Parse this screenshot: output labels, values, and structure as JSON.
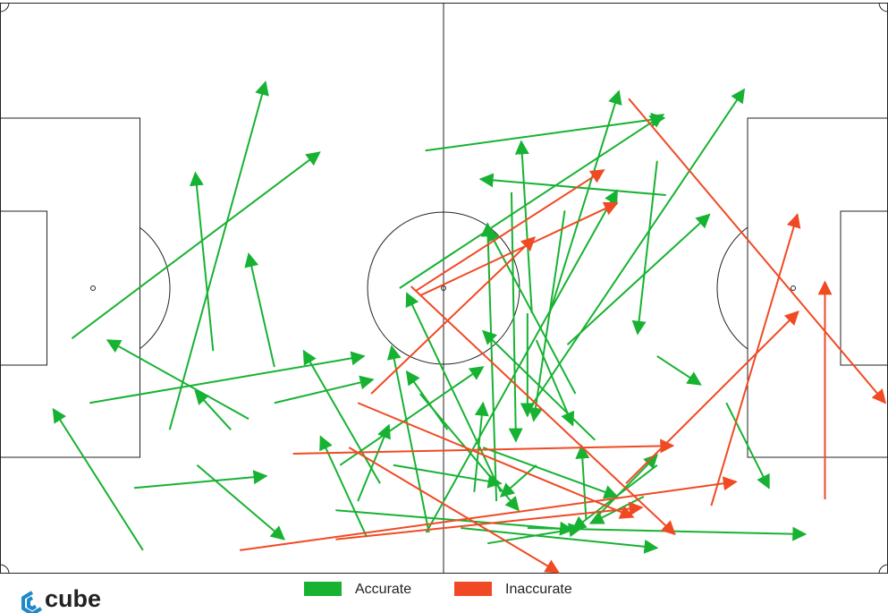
{
  "chart_data": {
    "type": "pass_map",
    "xlim": [
      0,
      100
    ],
    "ylim": [
      0,
      100
    ],
    "series": [
      {
        "name": "Accurate",
        "color": "#17b232",
        "x_start": [
          19.1,
          8.1,
          24.0,
          30.9,
          10.1,
          28.0,
          26.0,
          30.9,
          16.1,
          15.1,
          22.2,
          47.9,
          75.0,
          59.9,
          45.0,
          61.9,
          63.9,
          74.0,
          74.0,
          81.8,
          59.4,
          57.6,
          56.4,
          67.0,
          64.8,
          48.0,
          42.8,
          40.3,
          41.3,
          48.3,
          50.4,
          38.3,
          37.8,
          51.9,
          59.4,
          54.9,
          60.4,
          47.3,
          59.4,
          63.6,
          66.0,
          66.5,
          54.4,
          44.3,
          53.4,
          60.4,
          55.9,
          72.5,
          74.0
        ],
        "y_start": [
          74.8,
          58.8,
          61.0,
          63.8,
          70.1,
          72.9,
          74.8,
          70.1,
          95.9,
          85.0,
          81.0,
          25.9,
          33.7,
          54.4,
          50.0,
          54.4,
          59.9,
          27.7,
          61.9,
          70.1,
          71.6,
          33.2,
          85.7,
          76.6,
          68.5,
          92.8,
          84.2,
          87.3,
          93.6,
          92.8,
          74.8,
          81.0,
          88.9,
          92.0,
          92.0,
          94.7,
          81.0,
          68.5,
          54.4,
          36.4,
          90.4,
          91.2,
          77.9,
          81.0,
          85.7,
          59.1,
          87.3,
          86.5,
          81.0
        ],
        "x_end": [
          29.9,
          36.0,
          22.0,
          28.0,
          41.0,
          12.1,
          22.0,
          42.0,
          6.0,
          30.0,
          32.0,
          74.8,
          54.1,
          58.7,
          74.7,
          69.7,
          79.9,
          71.8,
          78.9,
          86.6,
          83.8,
          58.1,
          45.8,
          54.4,
          54.9,
          69.5,
          34.2,
          43.8,
          36.1,
          44.1,
          45.8,
          54.4,
          64.5,
          74.0,
          90.7,
          65.5,
          56.4,
          58.4,
          59.4,
          60.1,
          65.5,
          74.0,
          69.5,
          56.4,
          54.4,
          64.5,
          54.9,
          66.5,
          64.5
        ],
        "y_end": [
          13.9,
          26.2,
          29.8,
          44.0,
          61.9,
          59.1,
          68.0,
          66.0,
          71.2,
          82.9,
          94.0,
          20.2,
          30.9,
          24.3,
          19.6,
          15.5,
          37.1,
          58.0,
          66.9,
          85.0,
          15.2,
          76.8,
          50.9,
          57.5,
          39.5,
          32.9,
          61.0,
          74.0,
          76.0,
          60.2,
          64.6,
          63.8,
          92.3,
          95.5,
          93.1,
          92.0,
          86.5,
          88.9,
          72.4,
          73.2,
          77.6,
          79.2,
          86.5,
          84.2,
          70.1,
          74.0,
          38.7,
          91.2,
          92.3
        ]
      },
      {
        "name": "Inaccurate",
        "color": "#f04a24",
        "x_start": [
          70.8,
          46.8,
          47.3,
          41.8,
          46.3,
          33.0,
          27.0,
          37.8,
          80.1,
          92.9,
          70.5,
          40.3,
          39.3
        ],
        "y_start": [
          16.8,
          50.5,
          51.3,
          68.5,
          49.7,
          79.0,
          95.9,
          94.0,
          88.1,
          87.0,
          84.2,
          70.1,
          77.9
        ],
        "x_end": [
          99.7,
          68.0,
          69.5,
          60.2,
          76.0,
          75.8,
          82.9,
          72.3,
          89.8,
          92.9,
          89.9,
          71.3,
          62.9
        ],
        "y_end": [
          70.1,
          29.3,
          35.1,
          41.1,
          93.1,
          77.6,
          83.9,
          88.4,
          37.1,
          48.9,
          54.1,
          90.1,
          99.8
        ]
      }
    ]
  },
  "logo": "cube"
}
